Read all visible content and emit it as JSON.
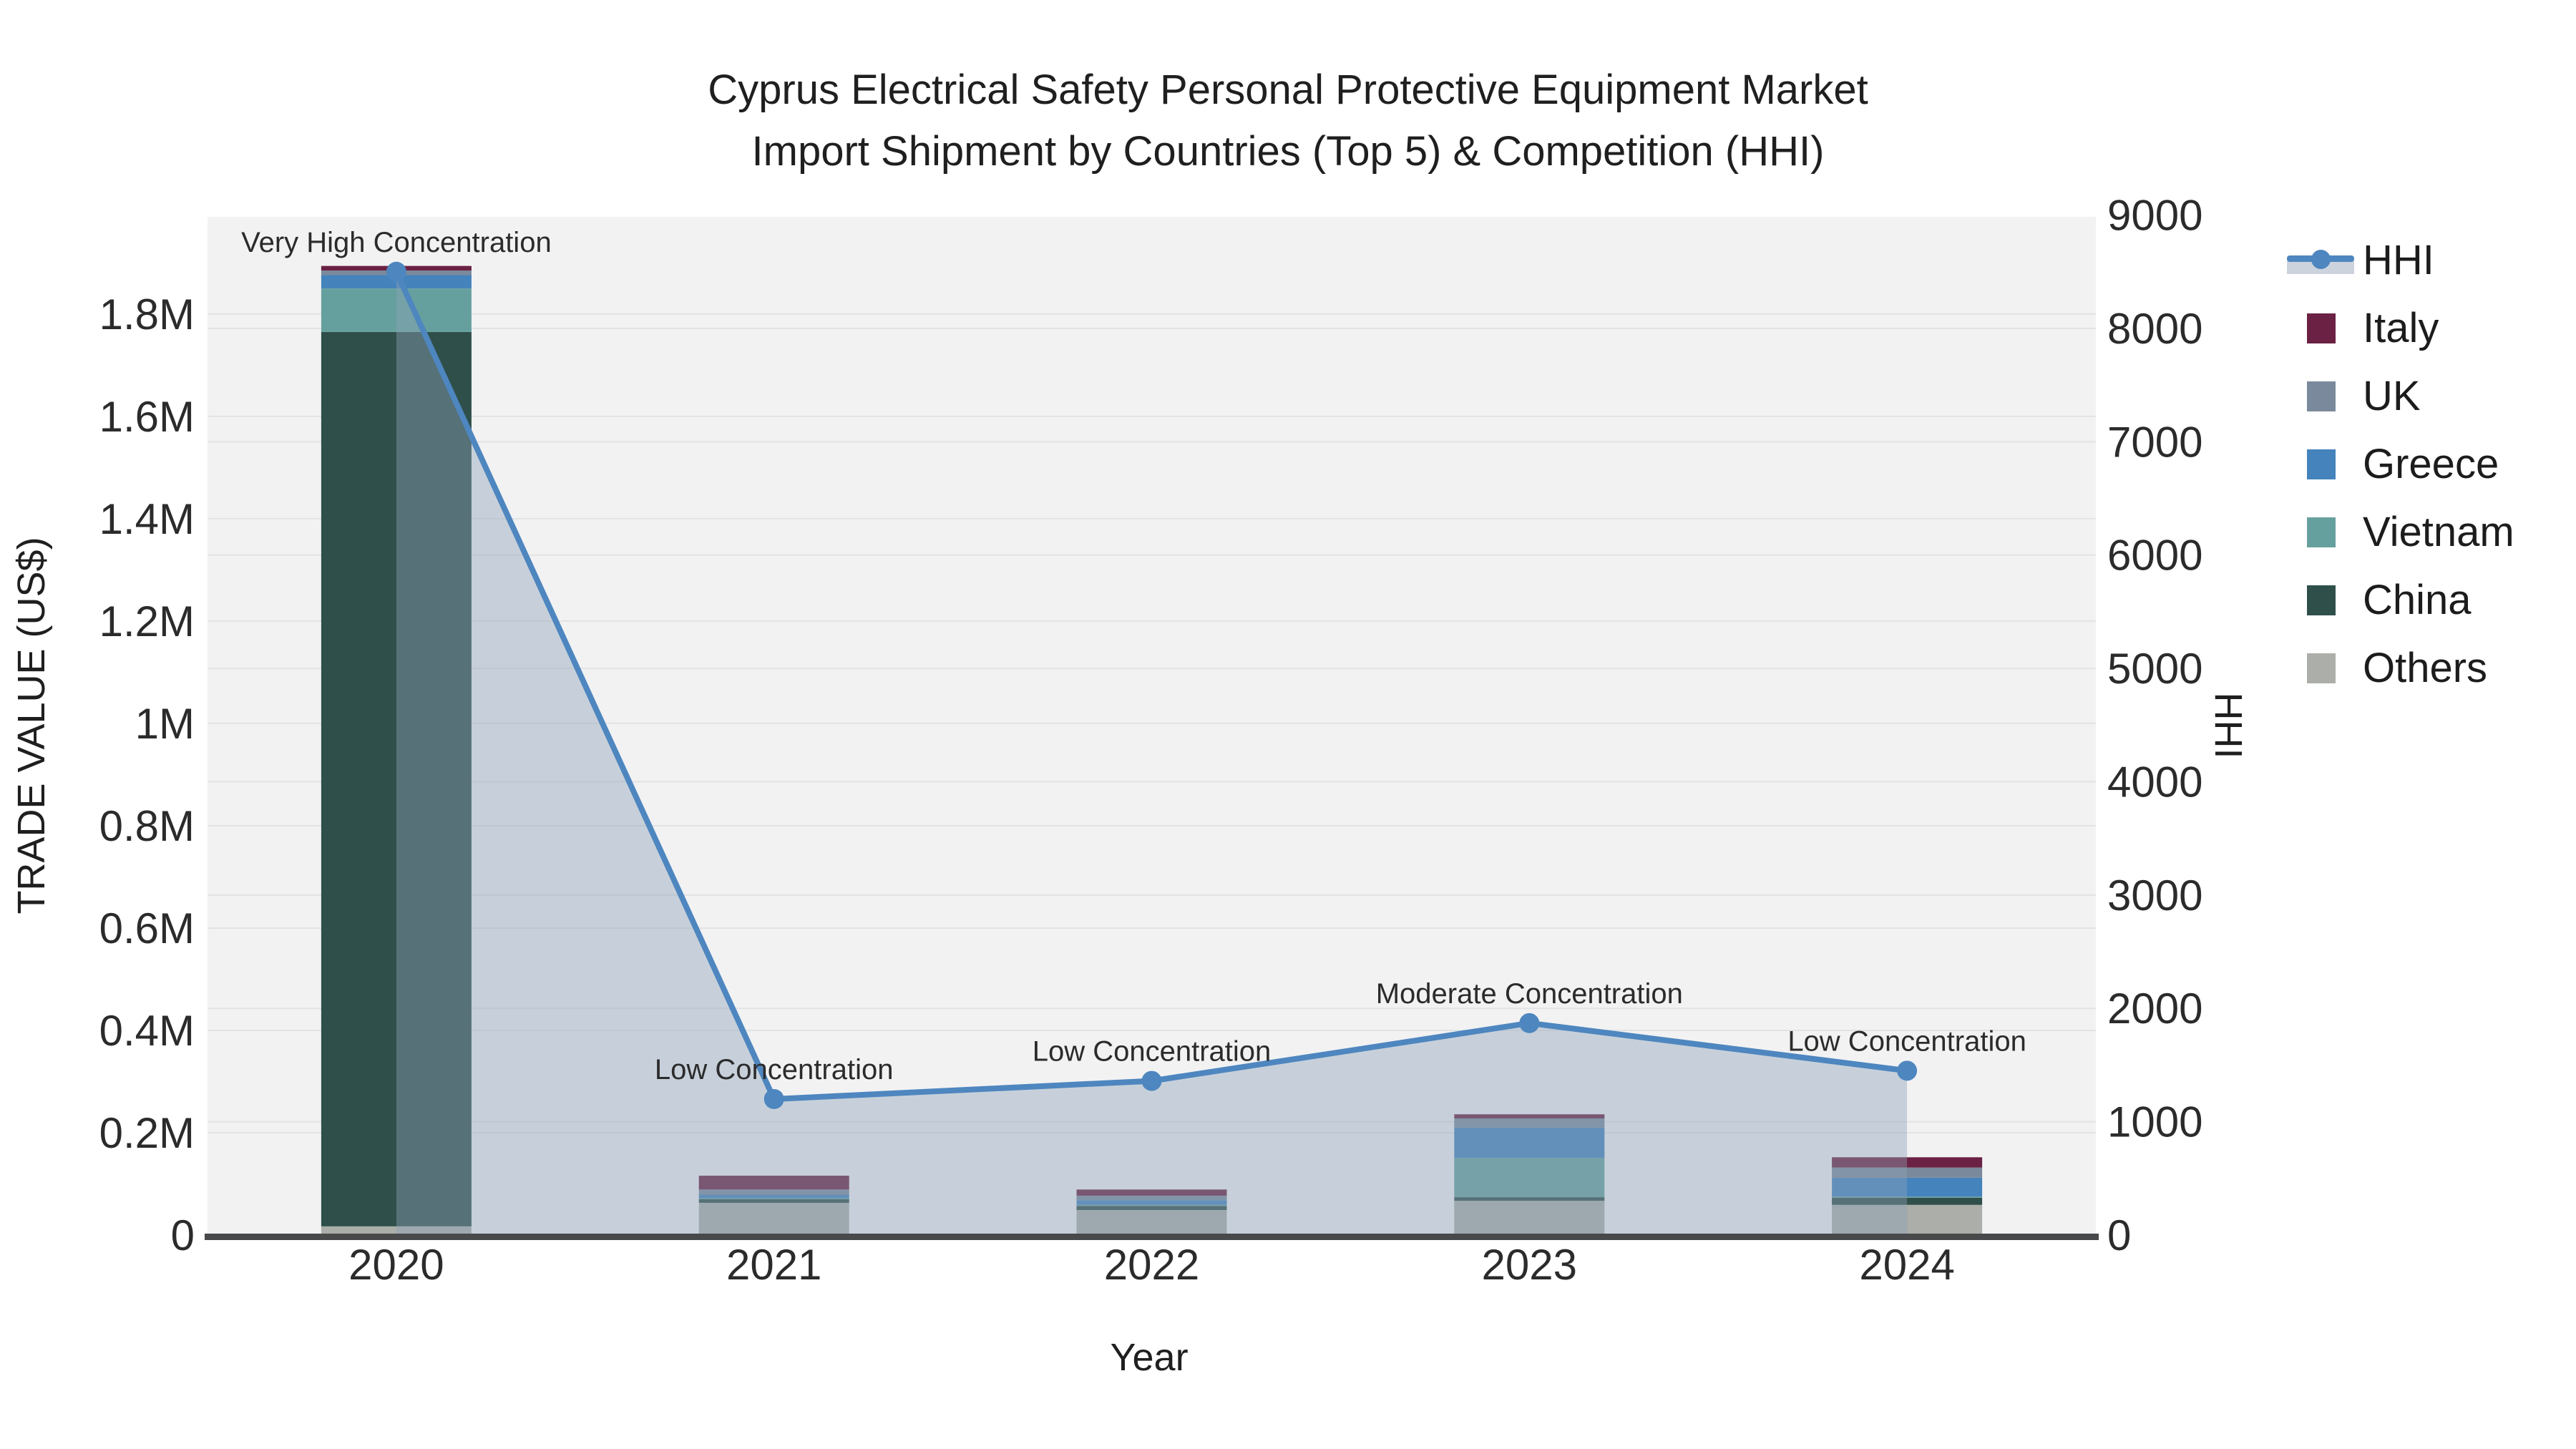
{
  "title": {
    "line1": "Cyprus Electrical Safety Personal Protective Equipment Market",
    "line2": "Import Shipment by Countries (Top 5) & Competition (HHI)"
  },
  "axes": {
    "x_title": "Year",
    "y_left_title": "TRADE VALUE (US$)",
    "y_right_title": "HHI",
    "y_left_ticks": [
      "0",
      "0.2M",
      "0.4M",
      "0.6M",
      "0.8M",
      "1M",
      "1.2M",
      "1.4M",
      "1.6M",
      "1.8M"
    ],
    "y_left_tick_values": [
      0,
      200000,
      400000,
      600000,
      800000,
      1000000,
      1200000,
      1400000,
      1600000,
      1800000
    ],
    "y_right_ticks": [
      "0",
      "1000",
      "2000",
      "3000",
      "4000",
      "5000",
      "6000",
      "7000",
      "8000",
      "9000"
    ],
    "y_right_tick_values": [
      0,
      1000,
      2000,
      3000,
      4000,
      5000,
      6000,
      7000,
      8000,
      9000
    ]
  },
  "legend": {
    "items": [
      {
        "label": "HHI",
        "swatch": "line-marker"
      },
      {
        "label": "Italy",
        "swatch": "square"
      },
      {
        "label": "UK",
        "swatch": "square"
      },
      {
        "label": "Greece",
        "swatch": "square"
      },
      {
        "label": "Vietnam",
        "swatch": "square"
      },
      {
        "label": "China",
        "swatch": "square"
      },
      {
        "label": "Others",
        "swatch": "square"
      }
    ]
  },
  "colors": {
    "hhi_line": "#4E86BF",
    "hhi_area_fill": "rgba(140,162,184,0.42)",
    "hhi_legend_band": "#CCD3DC",
    "plot_background": "#F2F2F3",
    "gridline": "#E2E3E5",
    "axis_line": "#47494B"
  },
  "chart_data": {
    "type": "bar",
    "subtype": "stacked-bars-with-line-overlay",
    "title": "Cyprus Electrical Safety Personal Protective Equipment Market Import Shipment by Countries (Top 5) & Competition (HHI)",
    "xlabel": "Year",
    "ylabel": "TRADE VALUE (US$)",
    "ylabel2": "HHI",
    "ylim": [
      0,
      1990000
    ],
    "y2lim": [
      0,
      8985
    ],
    "grid": true,
    "legend_position": "right",
    "categories": [
      "2020",
      "2021",
      "2022",
      "2023",
      "2024"
    ],
    "series": [
      {
        "name": "Others",
        "color": "#ABAEA9",
        "values": [
          17000,
          63000,
          49000,
          67000,
          59000
        ]
      },
      {
        "name": "China",
        "color": "#2F4F4A",
        "values": [
          1748000,
          7000,
          8000,
          7000,
          14000
        ]
      },
      {
        "name": "Vietnam",
        "color": "#66A09E",
        "values": [
          85000,
          2000,
          2000,
          77000,
          2000
        ]
      },
      {
        "name": "Greece",
        "color": "#4583BC",
        "values": [
          26000,
          7000,
          9000,
          59000,
          37000
        ]
      },
      {
        "name": "UK",
        "color": "#7A8A9C",
        "values": [
          9000,
          10000,
          9000,
          18000,
          20000
        ]
      },
      {
        "name": "Italy",
        "color": "#6B2143",
        "values": [
          9000,
          27000,
          12000,
          8000,
          20000
        ]
      }
    ],
    "line": {
      "name": "HHI",
      "color": "#4E86BF",
      "values": [
        8500,
        1200,
        1360,
        1870,
        1450
      ]
    },
    "annotations": [
      "Very High Concentration",
      "Low Concentration",
      "Low Concentration",
      "Moderate Concentration",
      "Low Concentration"
    ]
  }
}
